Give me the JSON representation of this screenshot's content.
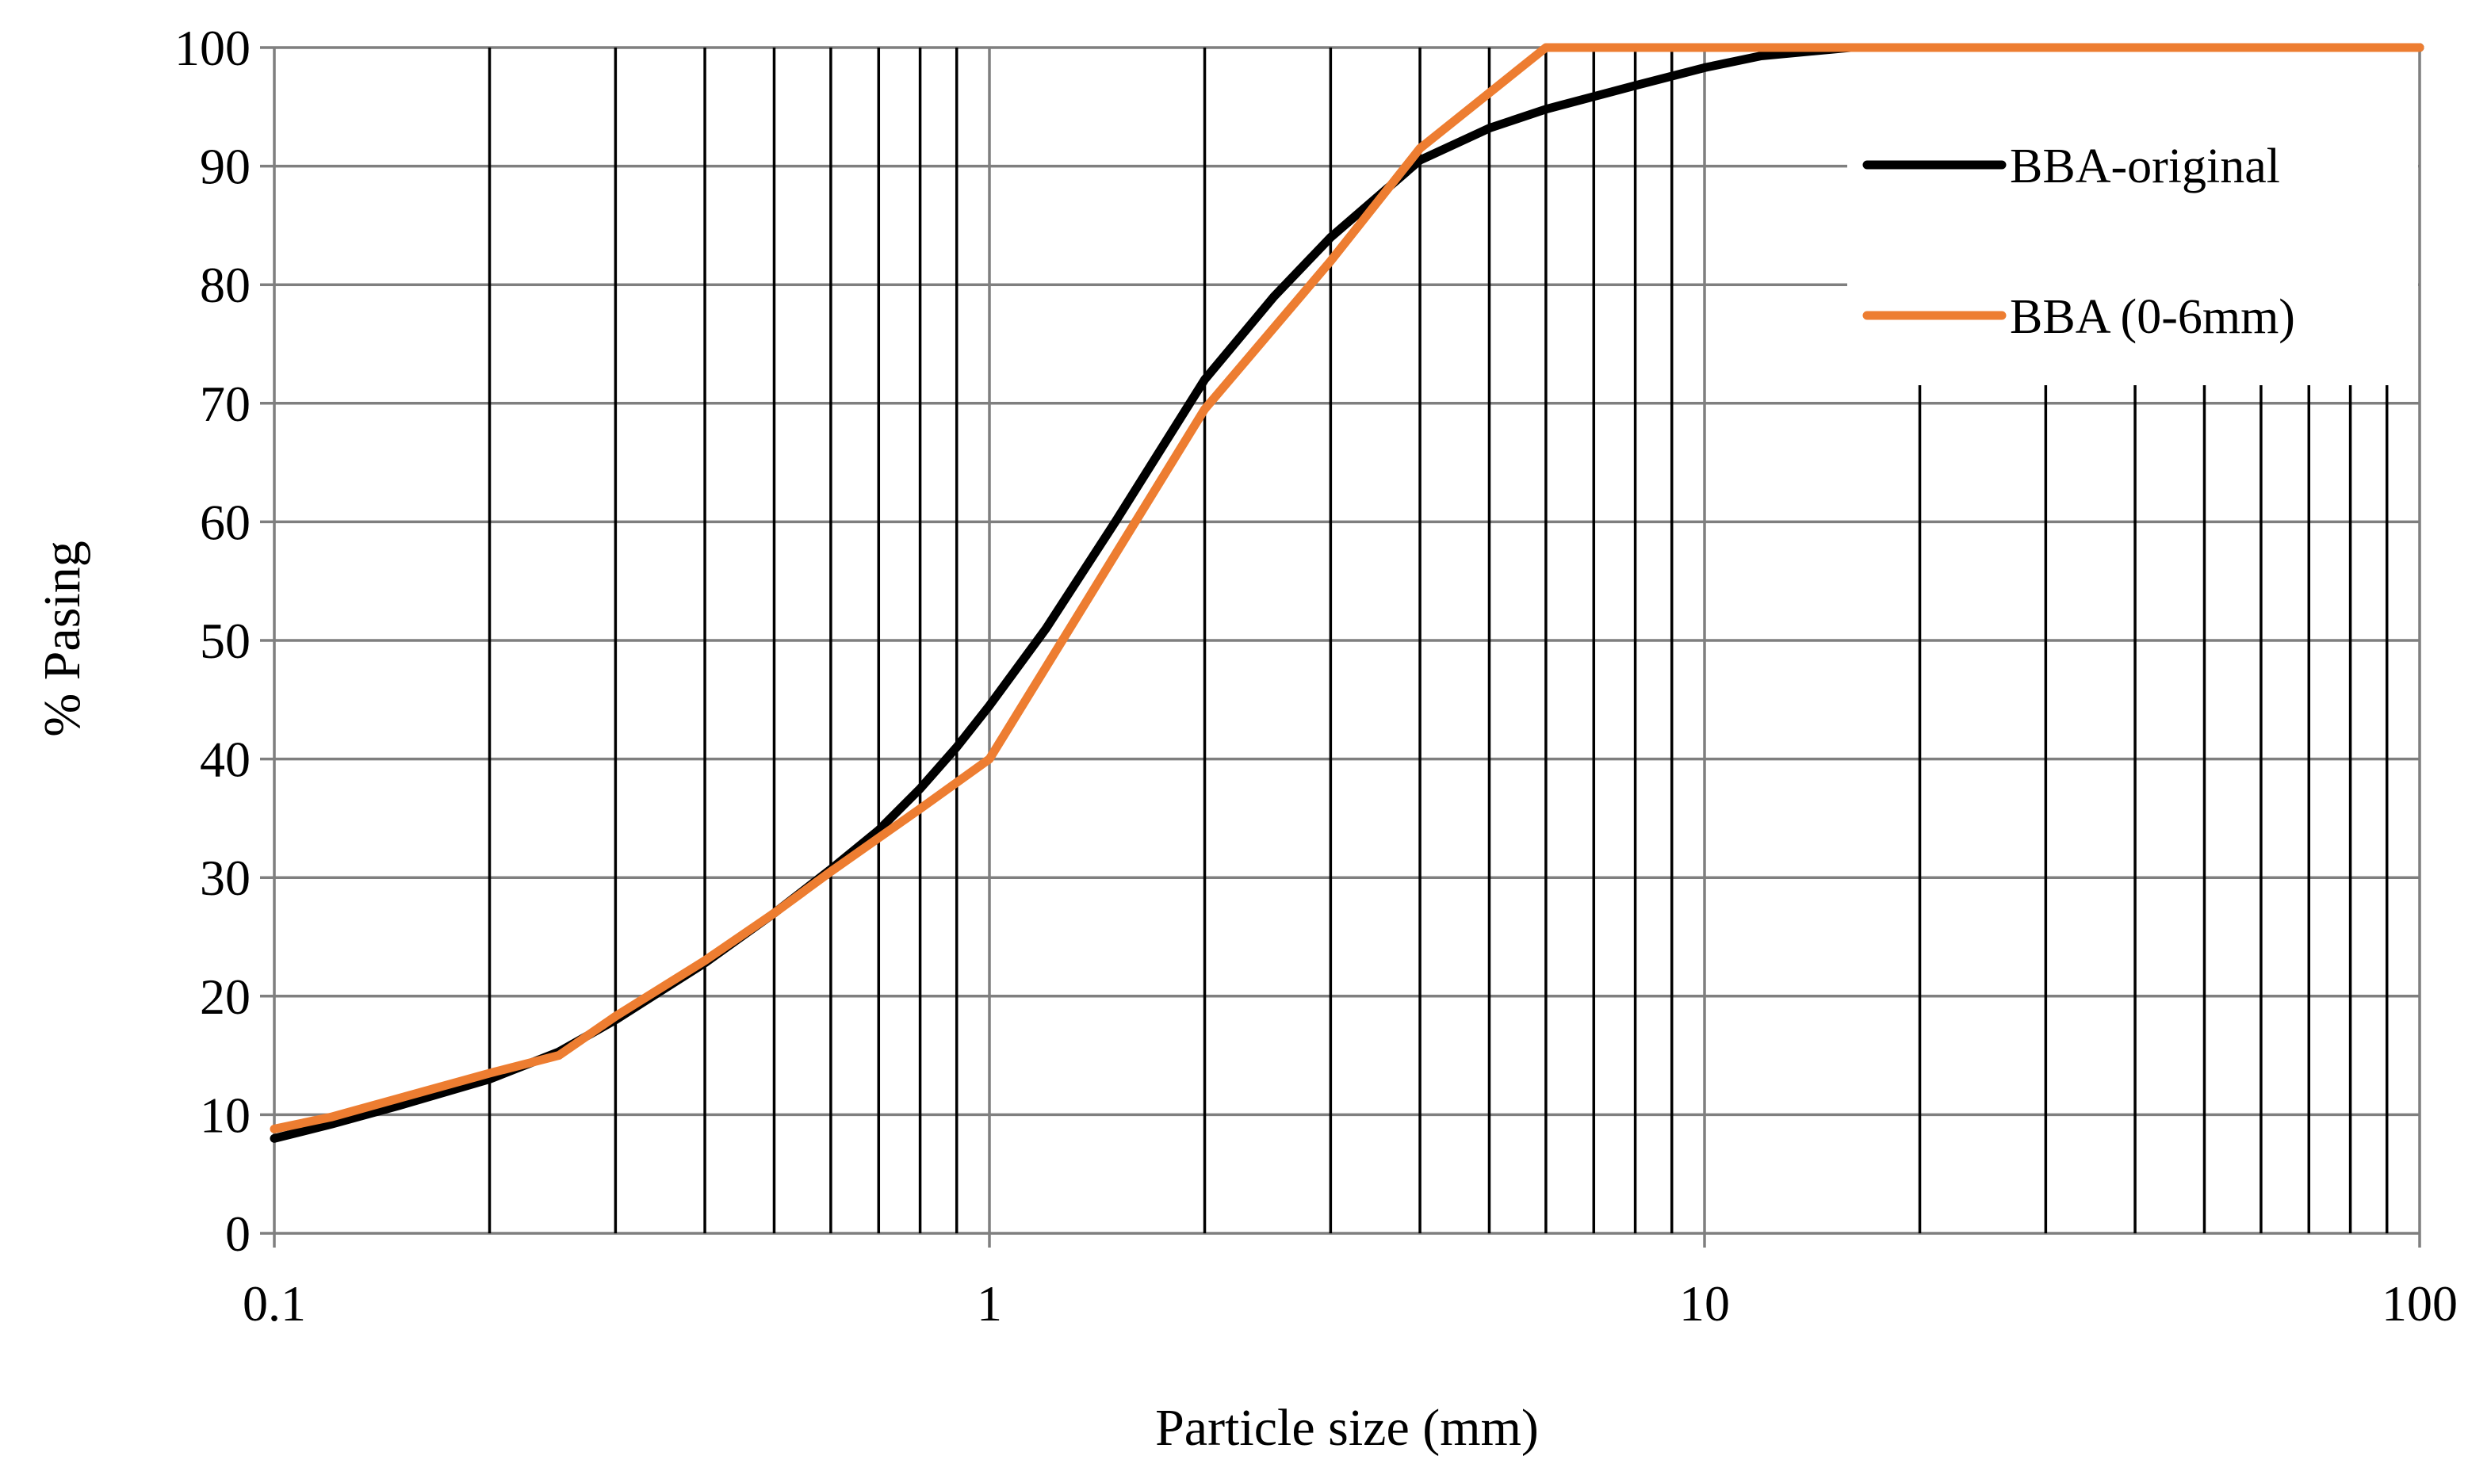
{
  "chart_data": {
    "type": "line",
    "title": "",
    "xlabel": "Particle size (mm)",
    "ylabel": "% Pasing",
    "x_scale": "log",
    "xlim": [
      0.1,
      100
    ],
    "ylim": [
      0,
      100
    ],
    "x_ticks": [
      {
        "value": 0.1,
        "label": "0.1"
      },
      {
        "value": 1,
        "label": "1"
      },
      {
        "value": 10,
        "label": "10"
      },
      {
        "value": 100,
        "label": "100"
      }
    ],
    "y_ticks": [
      {
        "value": 0,
        "label": "0"
      },
      {
        "value": 10,
        "label": "10"
      },
      {
        "value": 20,
        "label": "20"
      },
      {
        "value": 30,
        "label": "30"
      },
      {
        "value": 40,
        "label": "40"
      },
      {
        "value": 50,
        "label": "50"
      },
      {
        "value": 60,
        "label": "60"
      },
      {
        "value": 70,
        "label": "70"
      },
      {
        "value": 80,
        "label": "80"
      },
      {
        "value": 90,
        "label": "90"
      },
      {
        "value": 100,
        "label": "100"
      }
    ],
    "minor_x_gridlines": [
      0.2,
      0.3,
      0.4,
      0.5,
      0.6,
      0.7,
      0.8,
      0.9,
      2,
      3,
      4,
      5,
      6,
      7,
      8,
      9,
      20,
      30,
      40,
      50,
      60,
      70,
      80,
      90
    ],
    "grid": true,
    "legend_position": "top-right",
    "series": [
      {
        "name": "BBA-original",
        "color": "#000000",
        "points": [
          {
            "x": 0.1,
            "y": 8
          },
          {
            "x": 0.12,
            "y": 9.2
          },
          {
            "x": 0.15,
            "y": 10.8
          },
          {
            "x": 0.2,
            "y": 13
          },
          {
            "x": 0.25,
            "y": 15.3
          },
          {
            "x": 0.3,
            "y": 18
          },
          {
            "x": 0.4,
            "y": 22.8
          },
          {
            "x": 0.5,
            "y": 27
          },
          {
            "x": 0.6,
            "y": 30.7
          },
          {
            "x": 0.7,
            "y": 34
          },
          {
            "x": 0.8,
            "y": 37.5
          },
          {
            "x": 0.9,
            "y": 41
          },
          {
            "x": 1,
            "y": 44.5
          },
          {
            "x": 1.2,
            "y": 51
          },
          {
            "x": 1.5,
            "y": 60
          },
          {
            "x": 2,
            "y": 72
          },
          {
            "x": 2.5,
            "y": 79
          },
          {
            "x": 3,
            "y": 84
          },
          {
            "x": 4,
            "y": 90.5
          },
          {
            "x": 5,
            "y": 93.2
          },
          {
            "x": 6,
            "y": 94.8
          },
          {
            "x": 8,
            "y": 96.8
          },
          {
            "x": 10,
            "y": 98.3
          },
          {
            "x": 12,
            "y": 99.3
          },
          {
            "x": 16,
            "y": 100
          },
          {
            "x": 100,
            "y": 100
          }
        ]
      },
      {
        "name": "BBA (0-6mm)",
        "color": "#ED7D31",
        "points": [
          {
            "x": 0.1,
            "y": 8.8
          },
          {
            "x": 0.12,
            "y": 9.8
          },
          {
            "x": 0.2,
            "y": 13.5
          },
          {
            "x": 0.25,
            "y": 15
          },
          {
            "x": 0.3,
            "y": 18.3
          },
          {
            "x": 0.4,
            "y": 23
          },
          {
            "x": 0.5,
            "y": 27
          },
          {
            "x": 0.6,
            "y": 30.5
          },
          {
            "x": 0.8,
            "y": 35.8
          },
          {
            "x": 1,
            "y": 40
          },
          {
            "x": 2,
            "y": 69.5
          },
          {
            "x": 3,
            "y": 82
          },
          {
            "x": 4,
            "y": 91.5
          },
          {
            "x": 6,
            "y": 100
          },
          {
            "x": 100,
            "y": 100
          }
        ]
      }
    ]
  }
}
